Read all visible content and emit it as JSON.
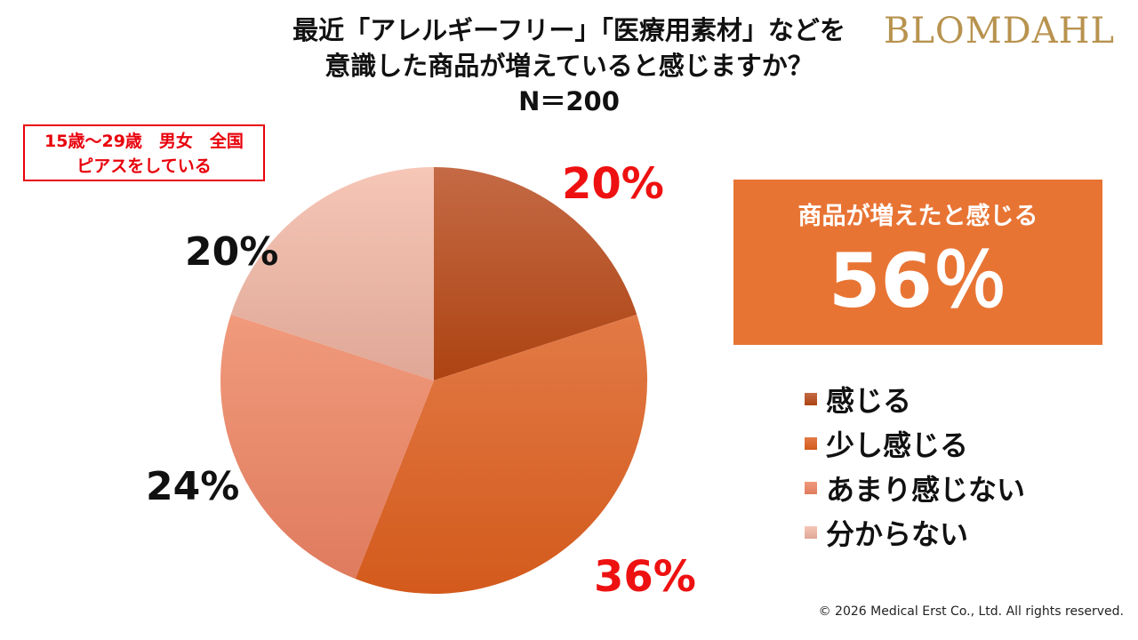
{
  "brand": "BLOMDAHL",
  "title_lines": [
    "最近「アレルギーフリー」「医療用素材」などを",
    "意識した商品が増えていると感じますか？",
    "N＝200"
  ],
  "scope_lines": [
    "15歳～29歳　男女　全国",
    "ピアスをしている"
  ],
  "callout": {
    "label": "商品が増えたと感じる",
    "value": "56％"
  },
  "footer": "© 2026 Medical Erst Co., Ltd. All rights reserved.",
  "chart_data": {
    "type": "pie",
    "title": "最近「アレルギーフリー」「医療用素材」などを意識した商品が増えていると感じますか？",
    "n": "N＝200",
    "slices": [
      {
        "label": "感じる",
        "value": 20,
        "display": "20%",
        "color_top": "#c46a45",
        "color_bottom": "#ad4312",
        "label_color": "#ee1111"
      },
      {
        "label": "少し感じる",
        "value": 36,
        "display": "36%",
        "color_top": "#e27a46",
        "color_bottom": "#d35a1c",
        "label_color": "#ee1111"
      },
      {
        "label": "あまり感じない",
        "value": 24,
        "display": "24%",
        "color_top": "#f19a7c",
        "color_bottom": "#df7b5e",
        "label_color": "#111111"
      },
      {
        "label": "分からない",
        "value": 20,
        "display": "20%",
        "color_top": "#f6c6b7",
        "color_bottom": "#dfa796",
        "label_color": "#111111"
      }
    ],
    "legend_position": "right"
  }
}
